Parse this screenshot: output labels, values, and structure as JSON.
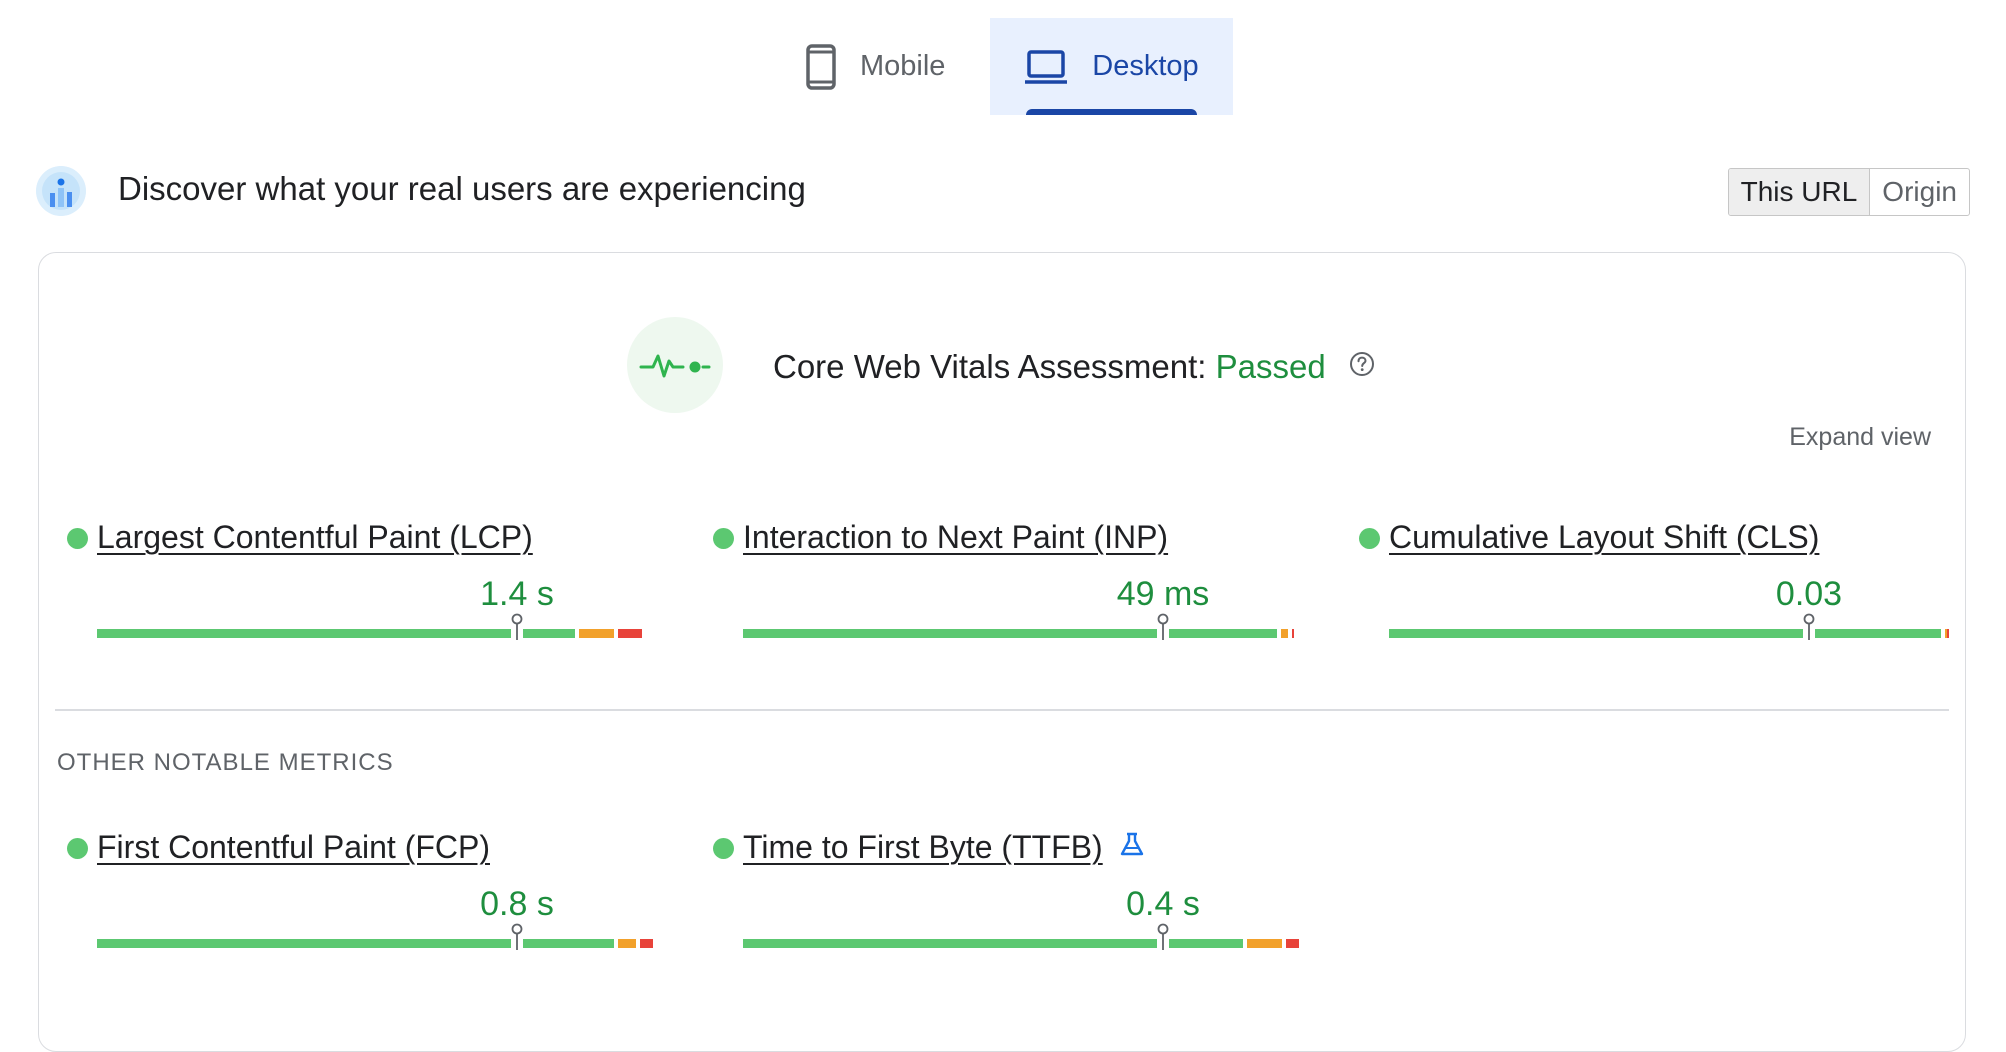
{
  "tabs": [
    {
      "label": "Mobile",
      "icon": "phone-icon",
      "selected": false
    },
    {
      "label": "Desktop",
      "icon": "laptop-icon",
      "selected": true
    }
  ],
  "header": {
    "title": "Discover what your real users are experiencing",
    "toggle": [
      {
        "label": "This URL",
        "selected": true
      },
      {
        "label": "Origin",
        "selected": false
      }
    ]
  },
  "assessment": {
    "label": "Core Web Vitals Assessment:",
    "status": "Passed",
    "expand_label": "Expand view"
  },
  "core_metrics": [
    {
      "name": "Largest Contentful Paint (LCP)",
      "value": "1.4 s",
      "status": "good",
      "distribution": [
        0.86,
        0.07,
        0.05
      ],
      "marker": 0.75
    },
    {
      "name": "Interaction to Next Paint (INP)",
      "value": "49 ms",
      "status": "good",
      "distribution": [
        0.96,
        0.02,
        0.01
      ],
      "marker": 0.75
    },
    {
      "name": "Cumulative Layout Shift (CLS)",
      "value": "0.03",
      "status": "good",
      "distribution": [
        0.992,
        0.004,
        0.004
      ],
      "marker": 0.75
    }
  ],
  "other_metrics_label": "OTHER NOTABLE METRICS",
  "other_metrics": [
    {
      "name": "First Contentful Paint (FCP)",
      "value": "0.8 s",
      "status": "good",
      "distribution": [
        0.93,
        0.04,
        0.03
      ],
      "marker": 0.75,
      "icon": ""
    },
    {
      "name": "Time to First Byte (TTFB)",
      "value": "0.4 s",
      "status": "good",
      "distribution": [
        0.9,
        0.07,
        0.03
      ],
      "marker": 0.75,
      "icon": "lab-flask-icon"
    }
  ],
  "colors": {
    "good": "#5cc871",
    "needs_improvement": "#f2a12b",
    "poor": "#e8433a",
    "accent": "#1a46a6",
    "pass_text": "#1e8e3e"
  }
}
